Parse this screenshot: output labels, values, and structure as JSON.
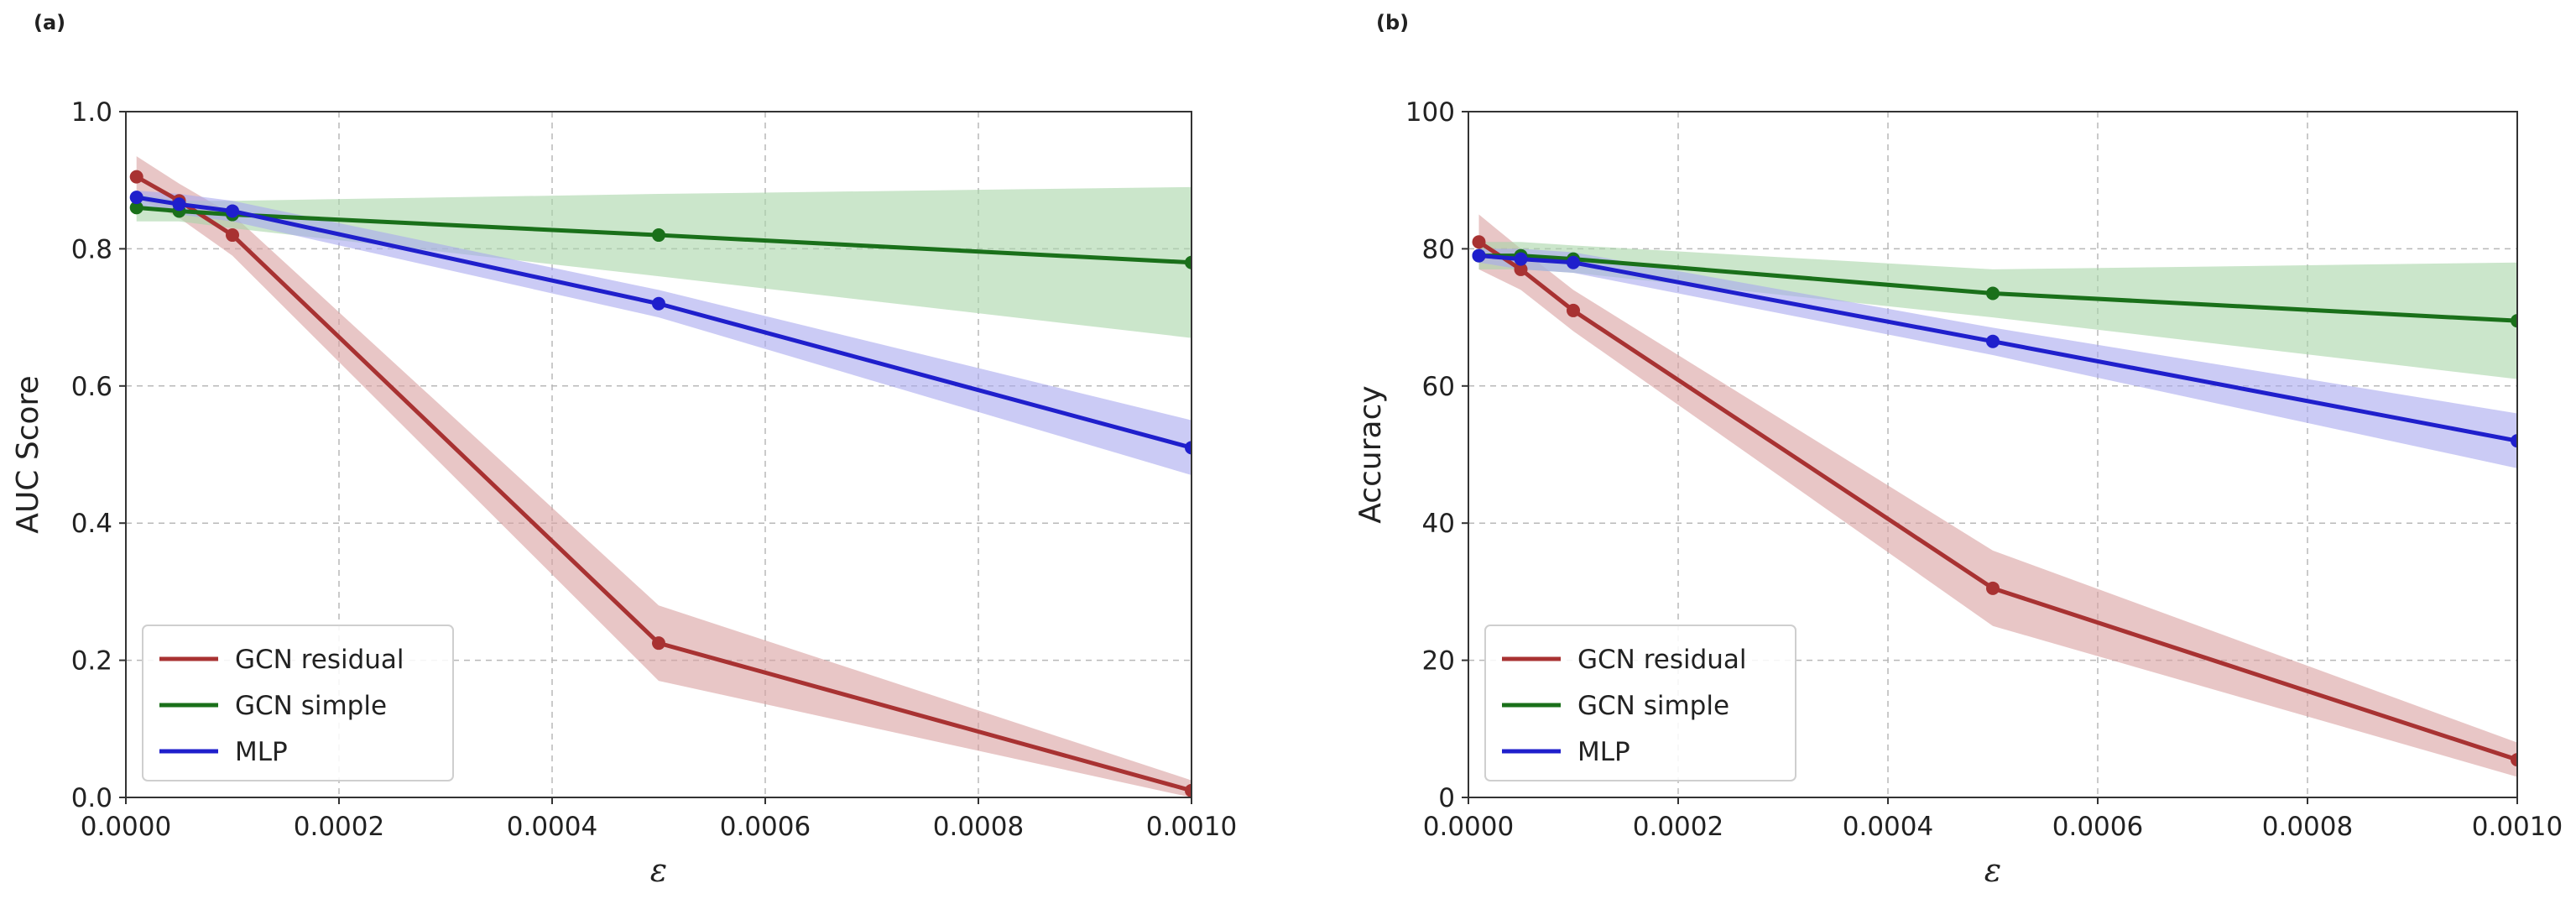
{
  "chart_data": [
    {
      "type": "line",
      "panel_label": "(a)",
      "xlabel": "ε",
      "ylabel": "AUC Score",
      "xlim": [
        0,
        0.001
      ],
      "ylim": [
        0,
        1.0
      ],
      "grid": true,
      "xticks": [
        0.0,
        0.0002,
        0.0004,
        0.0006,
        0.0008,
        0.001
      ],
      "xtick_labels": [
        "0.0000",
        "0.0002",
        "0.0004",
        "0.0006",
        "0.0008",
        "0.0010"
      ],
      "yticks": [
        0.0,
        0.2,
        0.4,
        0.6,
        0.8,
        1.0
      ],
      "ytick_labels": [
        "0.0",
        "0.2",
        "0.4",
        "0.6",
        "0.8",
        "1.0"
      ],
      "legend_position": "lower-left",
      "series": [
        {
          "name": "GCN residual",
          "color": "#a83232",
          "band_color": "#d9a0a0",
          "x": [
            1e-05,
            5e-05,
            0.0001,
            0.0005,
            0.001
          ],
          "values": [
            0.905,
            0.87,
            0.82,
            0.225,
            0.01
          ],
          "lower": [
            0.875,
            0.845,
            0.79,
            0.17,
            0.0
          ],
          "upper": [
            0.935,
            0.895,
            0.85,
            0.28,
            0.025
          ]
        },
        {
          "name": "GCN simple",
          "color": "#1a701a",
          "band_color": "#a8d5a8",
          "x": [
            1e-05,
            5e-05,
            0.0001,
            0.0005,
            0.001
          ],
          "values": [
            0.86,
            0.855,
            0.85,
            0.82,
            0.78
          ],
          "lower": [
            0.84,
            0.84,
            0.83,
            0.76,
            0.67
          ],
          "upper": [
            0.88,
            0.87,
            0.87,
            0.88,
            0.89
          ]
        },
        {
          "name": "MLP",
          "color": "#1f1fcc",
          "band_color": "#a8a8ee",
          "x": [
            1e-05,
            5e-05,
            0.0001,
            0.0005,
            0.001
          ],
          "values": [
            0.875,
            0.865,
            0.855,
            0.72,
            0.51
          ],
          "lower": [
            0.865,
            0.85,
            0.84,
            0.7,
            0.47
          ],
          "upper": [
            0.885,
            0.88,
            0.87,
            0.74,
            0.55
          ]
        }
      ]
    },
    {
      "type": "line",
      "panel_label": "(b)",
      "xlabel": "ε",
      "ylabel": "Accuracy",
      "xlim": [
        0,
        0.001
      ],
      "ylim": [
        0,
        100
      ],
      "grid": true,
      "xticks": [
        0.0,
        0.0002,
        0.0004,
        0.0006,
        0.0008,
        0.001
      ],
      "xtick_labels": [
        "0.0000",
        "0.0002",
        "0.0004",
        "0.0006",
        "0.0008",
        "0.0010"
      ],
      "yticks": [
        0,
        20,
        40,
        60,
        80,
        100
      ],
      "ytick_labels": [
        "0",
        "20",
        "40",
        "60",
        "80",
        "100"
      ],
      "legend_position": "lower-left",
      "series": [
        {
          "name": "GCN residual",
          "color": "#a83232",
          "band_color": "#d9a0a0",
          "x": [
            1e-05,
            5e-05,
            0.0001,
            0.0005,
            0.001
          ],
          "values": [
            81,
            77,
            71,
            30.5,
            5.5
          ],
          "lower": [
            77,
            74,
            68,
            25,
            3
          ],
          "upper": [
            85,
            80,
            74,
            36,
            8
          ]
        },
        {
          "name": "GCN simple",
          "color": "#1a701a",
          "band_color": "#a8d5a8",
          "x": [
            1e-05,
            5e-05,
            0.0001,
            0.0005,
            0.001
          ],
          "values": [
            79,
            79,
            78.5,
            73.5,
            69.5
          ],
          "lower": [
            77,
            77,
            76.5,
            70,
            61
          ],
          "upper": [
            81,
            81,
            80.5,
            77,
            78
          ]
        },
        {
          "name": "MLP",
          "color": "#1f1fcc",
          "band_color": "#a8a8ee",
          "x": [
            1e-05,
            5e-05,
            0.0001,
            0.0005,
            0.001
          ],
          "values": [
            79,
            78.5,
            78,
            66.5,
            52
          ],
          "lower": [
            78,
            77,
            76.5,
            64.5,
            48
          ],
          "upper": [
            80,
            80,
            79.5,
            68.5,
            56
          ]
        }
      ]
    }
  ]
}
